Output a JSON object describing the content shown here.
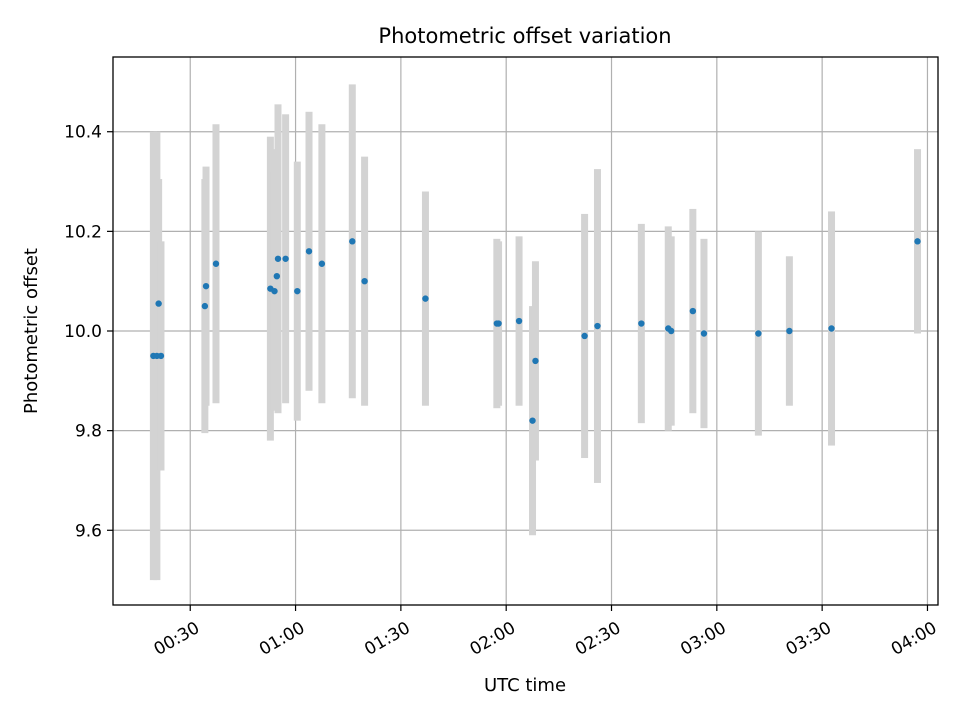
{
  "chart_data": {
    "type": "scatter",
    "title": "Photometric offset variation",
    "xlabel": "UTC time",
    "ylabel": "Photometric offset",
    "x_ticks": [
      "00:30",
      "01:00",
      "01:30",
      "02:00",
      "02:30",
      "03:00",
      "03:30",
      "04:00"
    ],
    "y_ticks": [
      "9.6",
      "9.8",
      "10.0",
      "10.2",
      "10.4"
    ],
    "xlim": [
      "00:08:00",
      "04:03:00"
    ],
    "ylim": [
      9.45,
      10.55
    ],
    "grid": true,
    "colors": {
      "point": "#1f77b4",
      "errorbar": "#d3d3d3",
      "grid": "#b0b0b0"
    },
    "points": [
      {
        "t": "00:19:30",
        "y": 9.95,
        "err": 0.45
      },
      {
        "t": "00:20:30",
        "y": 9.95,
        "err": 0.45
      },
      {
        "t": "00:21:00",
        "y": 10.055,
        "err": 0.25
      },
      {
        "t": "00:21:40",
        "y": 9.95,
        "err": 0.23
      },
      {
        "t": "00:34:10",
        "y": 10.05,
        "err": 0.255
      },
      {
        "t": "00:34:30",
        "y": 10.09,
        "err": 0.24
      },
      {
        "t": "00:37:20",
        "y": 10.135,
        "err": 0.28
      },
      {
        "t": "00:52:50",
        "y": 10.085,
        "err": 0.305
      },
      {
        "t": "00:54:00",
        "y": 10.08,
        "err": 0.24
      },
      {
        "t": "00:54:40",
        "y": 10.11,
        "err": 0.255
      },
      {
        "t": "00:55:00",
        "y": 10.145,
        "err": 0.31
      },
      {
        "t": "00:57:10",
        "y": 10.145,
        "err": 0.29
      },
      {
        "t": "01:00:30",
        "y": 10.08,
        "err": 0.26
      },
      {
        "t": "01:03:50",
        "y": 10.16,
        "err": 0.28
      },
      {
        "t": "01:07:30",
        "y": 10.135,
        "err": 0.28
      },
      {
        "t": "01:16:10",
        "y": 10.18,
        "err": 0.315
      },
      {
        "t": "01:19:40",
        "y": 10.1,
        "err": 0.25
      },
      {
        "t": "01:37:00",
        "y": 10.065,
        "err": 0.215
      },
      {
        "t": "01:57:20",
        "y": 10.015,
        "err": 0.17
      },
      {
        "t": "01:57:50",
        "y": 10.015,
        "err": 0.165
      },
      {
        "t": "02:03:40",
        "y": 10.02,
        "err": 0.17
      },
      {
        "t": "02:07:30",
        "y": 9.82,
        "err": 0.23
      },
      {
        "t": "02:08:20",
        "y": 9.94,
        "err": 0.2
      },
      {
        "t": "02:22:20",
        "y": 9.99,
        "err": 0.245
      },
      {
        "t": "02:26:00",
        "y": 10.01,
        "err": 0.315
      },
      {
        "t": "02:38:30",
        "y": 10.015,
        "err": 0.2
      },
      {
        "t": "02:46:10",
        "y": 10.005,
        "err": 0.205
      },
      {
        "t": "02:47:00",
        "y": 10.0,
        "err": 0.19
      },
      {
        "t": "02:53:10",
        "y": 10.04,
        "err": 0.205
      },
      {
        "t": "02:56:20",
        "y": 9.995,
        "err": 0.19
      },
      {
        "t": "03:11:50",
        "y": 9.995,
        "err": 0.205
      },
      {
        "t": "03:20:40",
        "y": 10.0,
        "err": 0.15
      },
      {
        "t": "03:32:40",
        "y": 10.005,
        "err": 0.235
      },
      {
        "t": "03:57:10",
        "y": 10.18,
        "err": 0.185
      }
    ]
  }
}
